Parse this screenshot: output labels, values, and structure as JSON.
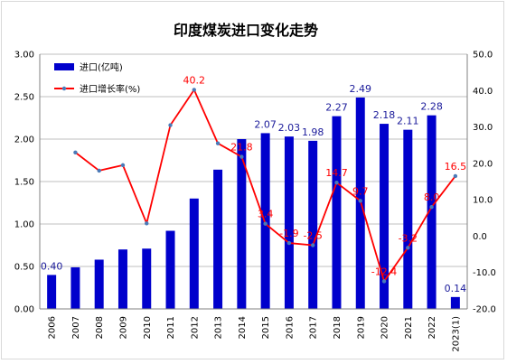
{
  "chart_data": {
    "type": "bar",
    "title": "印度煤炭进口变化走势",
    "categories": [
      "2006",
      "2007",
      "2008",
      "2009",
      "2010",
      "2011",
      "2012",
      "2013",
      "2014",
      "2015",
      "2016",
      "2017",
      "2018",
      "2019",
      "2020",
      "2021",
      "2022",
      "2023(1)"
    ],
    "series": [
      {
        "name": "进口(亿吨)",
        "type": "bar",
        "axis": "left",
        "color": "#0000cc",
        "values": [
          0.4,
          0.49,
          0.58,
          0.7,
          0.71,
          0.92,
          1.3,
          1.64,
          2.0,
          2.07,
          2.03,
          1.98,
          2.27,
          2.49,
          2.18,
          2.11,
          2.28,
          0.14
        ],
        "data_labels": [
          "0.40",
          "",
          "",
          "",
          "",
          "",
          "",
          "",
          "",
          "2.07",
          "2.03",
          "1.98",
          "2.27",
          "2.49",
          "2.18",
          "2.11",
          "2.28",
          "0.14"
        ]
      },
      {
        "name": "进口增长率(%)",
        "type": "line",
        "axis": "right",
        "color": "#ff0000",
        "marker_color": "#4a7ab8",
        "values": [
          null,
          23.0,
          18.0,
          19.5,
          3.5,
          30.5,
          40.2,
          25.5,
          21.8,
          3.4,
          -1.9,
          -2.5,
          14.7,
          9.7,
          -12.4,
          -3.2,
          8.0,
          16.5
        ],
        "data_labels": [
          "",
          "",
          "",
          "",
          "",
          "",
          "40.2",
          "",
          "21.8",
          "3.4",
          "-1.9",
          "-2.5",
          "14.7",
          "9.7",
          "-12.4",
          "-3.2",
          "8.0",
          "16.5"
        ]
      }
    ],
    "y_left": {
      "min": 0,
      "max": 3.0,
      "ticks": [
        "0.00",
        "0.50",
        "1.00",
        "1.50",
        "2.00",
        "2.50",
        "3.00"
      ]
    },
    "y_right": {
      "min": -20,
      "max": 50,
      "ticks": [
        "-20.0",
        "-10.0",
        "0.0",
        "10.0",
        "20.0",
        "30.0",
        "40.0",
        "50.0"
      ]
    },
    "grid": true,
    "legend_position": "top-left"
  }
}
